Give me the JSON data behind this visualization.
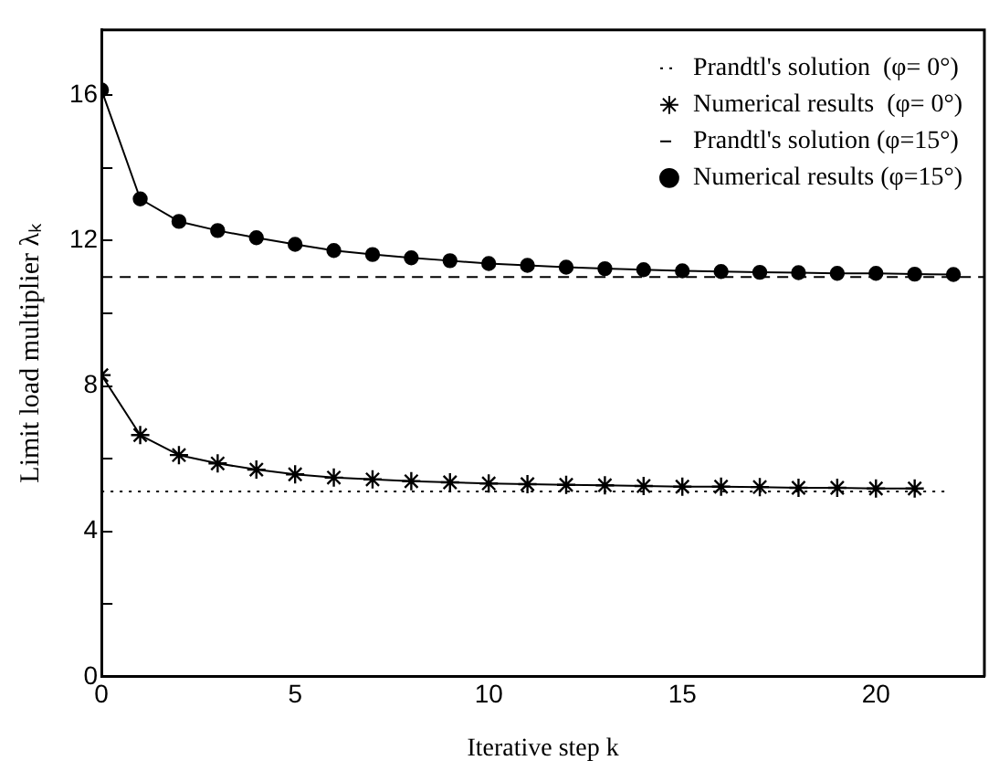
{
  "chart_data": {
    "type": "line",
    "xlabel": "Iterative step k",
    "ylabel": "Limit load multiplier λₖ",
    "xlim": [
      0,
      22.8
    ],
    "xticks": [
      0,
      5,
      10,
      15,
      20
    ],
    "ylim": [
      0,
      17.8
    ],
    "yticks": [
      0,
      {
        "value": 2,
        "label": null
      },
      4,
      {
        "value": 6,
        "label": null
      },
      8,
      {
        "value": 10,
        "label": null
      },
      12,
      {
        "value": 14,
        "label": null
      },
      16
    ],
    "grid": false,
    "legend": "top right",
    "series": [
      {
        "name": "Prandtl's solution  (φ= 0°)",
        "color": "#000000",
        "line_style": "dotted",
        "marker": "none",
        "x": [
          0,
          21.8
        ],
        "values": [
          5.1,
          5.1
        ]
      },
      {
        "name": "Numerical results  (φ= 0°)",
        "color": "#000000",
        "line_style": "solid",
        "marker": "cross",
        "x": [
          0,
          1,
          2,
          3,
          4,
          5,
          6,
          7,
          8,
          9,
          10,
          11,
          12,
          13,
          14,
          15,
          16,
          17,
          18,
          19,
          20,
          21
        ],
        "values": [
          8.3,
          6.65,
          6.1,
          5.87,
          5.7,
          5.57,
          5.48,
          5.43,
          5.38,
          5.35,
          5.32,
          5.3,
          5.28,
          5.27,
          5.25,
          5.23,
          5.23,
          5.22,
          5.2,
          5.2,
          5.18,
          5.18
        ]
      },
      {
        "name": "Prandtl's solution (φ=15°)",
        "color": "#000000",
        "line_style": "dashed",
        "marker": "none",
        "x": [
          0,
          22.8
        ],
        "values": [
          11,
          11
        ]
      },
      {
        "name": "Numerical results (φ=15°)",
        "color": "#000000",
        "line_style": "solid",
        "marker": "circle",
        "x": [
          0,
          1,
          2,
          3,
          4,
          5,
          6,
          7,
          8,
          9,
          10,
          11,
          12,
          13,
          14,
          15,
          16,
          17,
          18,
          19,
          20,
          21,
          22
        ],
        "values": [
          16.15,
          13.15,
          12.53,
          12.28,
          12.08,
          11.9,
          11.73,
          11.62,
          11.53,
          11.45,
          11.37,
          11.32,
          11.27,
          11.23,
          11.2,
          11.17,
          11.15,
          11.13,
          11.12,
          11.1,
          11.1,
          11.08,
          11.07
        ]
      }
    ]
  }
}
